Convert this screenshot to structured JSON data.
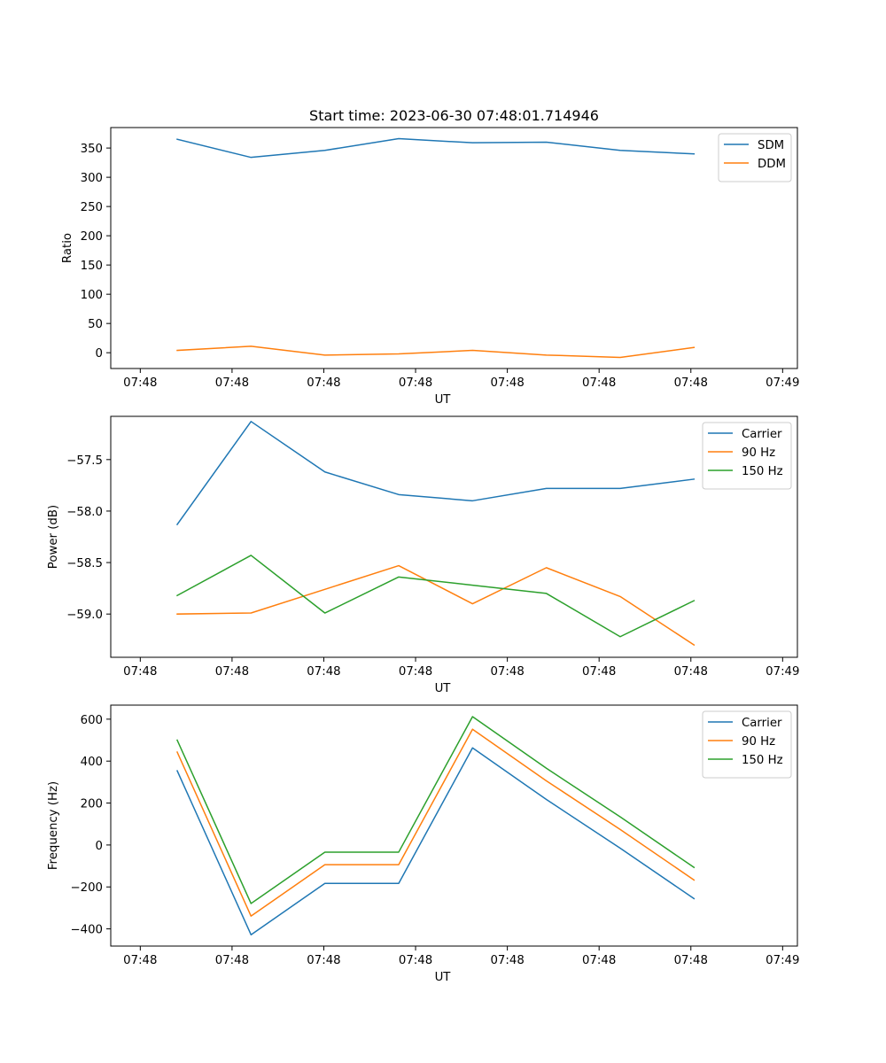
{
  "title": "Start time: 2023-06-30 07:48:01.714946",
  "colors": {
    "blue": "#1f77b4",
    "orange": "#ff7f0e",
    "green": "#2ca02c"
  },
  "chart_data": [
    {
      "type": "line",
      "ylabel": "Ratio",
      "xlabel": "UT",
      "x_tick_labels": [
        "07:48",
        "07:48",
        "07:48",
        "07:48",
        "07:48",
        "07:48",
        "07:48",
        "07:49"
      ],
      "y_ticks": [
        0,
        50,
        100,
        150,
        200,
        250,
        300,
        350
      ],
      "y_tick_labels": [
        "0",
        "50",
        "100",
        "150",
        "200",
        "250",
        "300",
        "350"
      ],
      "ylim": [
        -27,
        385
      ],
      "grid": false,
      "legend": "top-right",
      "x": [
        1,
        2,
        3,
        4,
        5,
        6,
        7,
        8
      ],
      "xlim": [
        0.1,
        9.4
      ],
      "series": [
        {
          "name": "SDM",
          "color": "#1f77b4",
          "values": [
            365,
            334,
            346,
            366,
            359,
            360,
            346,
            340
          ]
        },
        {
          "name": "DDM",
          "color": "#ff7f0e",
          "values": [
            4,
            11,
            -4,
            -2,
            4,
            -4,
            -8,
            9
          ]
        }
      ]
    },
    {
      "type": "line",
      "ylabel": "Power (dB)",
      "xlabel": "UT",
      "x_tick_labels": [
        "07:48",
        "07:48",
        "07:48",
        "07:48",
        "07:48",
        "07:48",
        "07:48",
        "07:49"
      ],
      "y_ticks": [
        -59.0,
        -58.5,
        -58.0,
        -57.5
      ],
      "y_tick_labels": [
        "−59.0",
        "−58.5",
        "−58.0",
        "−57.5"
      ],
      "ylim": [
        -59.42,
        -57.08
      ],
      "grid": false,
      "legend": "top-right",
      "x": [
        1,
        2,
        3,
        4,
        5,
        6,
        7,
        8
      ],
      "xlim": [
        0.1,
        9.4
      ],
      "series": [
        {
          "name": "Carrier",
          "color": "#1f77b4",
          "values": [
            -58.13,
            -57.13,
            -57.62,
            -57.84,
            -57.9,
            -57.78,
            -57.78,
            -57.69
          ]
        },
        {
          "name": "90 Hz",
          "color": "#ff7f0e",
          "values": [
            -59.0,
            -58.99,
            -58.76,
            -58.53,
            -58.9,
            -58.55,
            -58.83,
            -59.3
          ]
        },
        {
          "name": "150 Hz",
          "color": "#2ca02c",
          "values": [
            -58.82,
            -58.43,
            -58.99,
            -58.64,
            -58.72,
            -58.8,
            -59.22,
            -58.87
          ]
        }
      ]
    },
    {
      "type": "line",
      "ylabel": "Frequency (Hz)",
      "xlabel": "UT",
      "x_tick_labels": [
        "07:48",
        "07:48",
        "07:48",
        "07:48",
        "07:48",
        "07:48",
        "07:48",
        "07:49"
      ],
      "y_ticks": [
        -400,
        -200,
        0,
        200,
        400,
        600
      ],
      "y_tick_labels": [
        "−400",
        "−200",
        "0",
        "200",
        "400",
        "600"
      ],
      "ylim": [
        -482,
        667
      ],
      "grid": false,
      "legend": "top-right",
      "x": [
        1,
        2,
        3,
        4,
        5,
        6,
        7,
        8
      ],
      "xlim": [
        0.1,
        9.4
      ],
      "series": [
        {
          "name": "Carrier",
          "color": "#1f77b4",
          "values": [
            354,
            -428,
            -183,
            -183,
            463,
            217,
            -15,
            -256
          ]
        },
        {
          "name": "90 Hz",
          "color": "#ff7f0e",
          "values": [
            443,
            -339,
            -94,
            -94,
            552,
            306,
            74,
            -167
          ]
        },
        {
          "name": "150 Hz",
          "color": "#2ca02c",
          "values": [
            500,
            -279,
            -34,
            -34,
            612,
            366,
            134,
            -107
          ]
        }
      ]
    }
  ]
}
